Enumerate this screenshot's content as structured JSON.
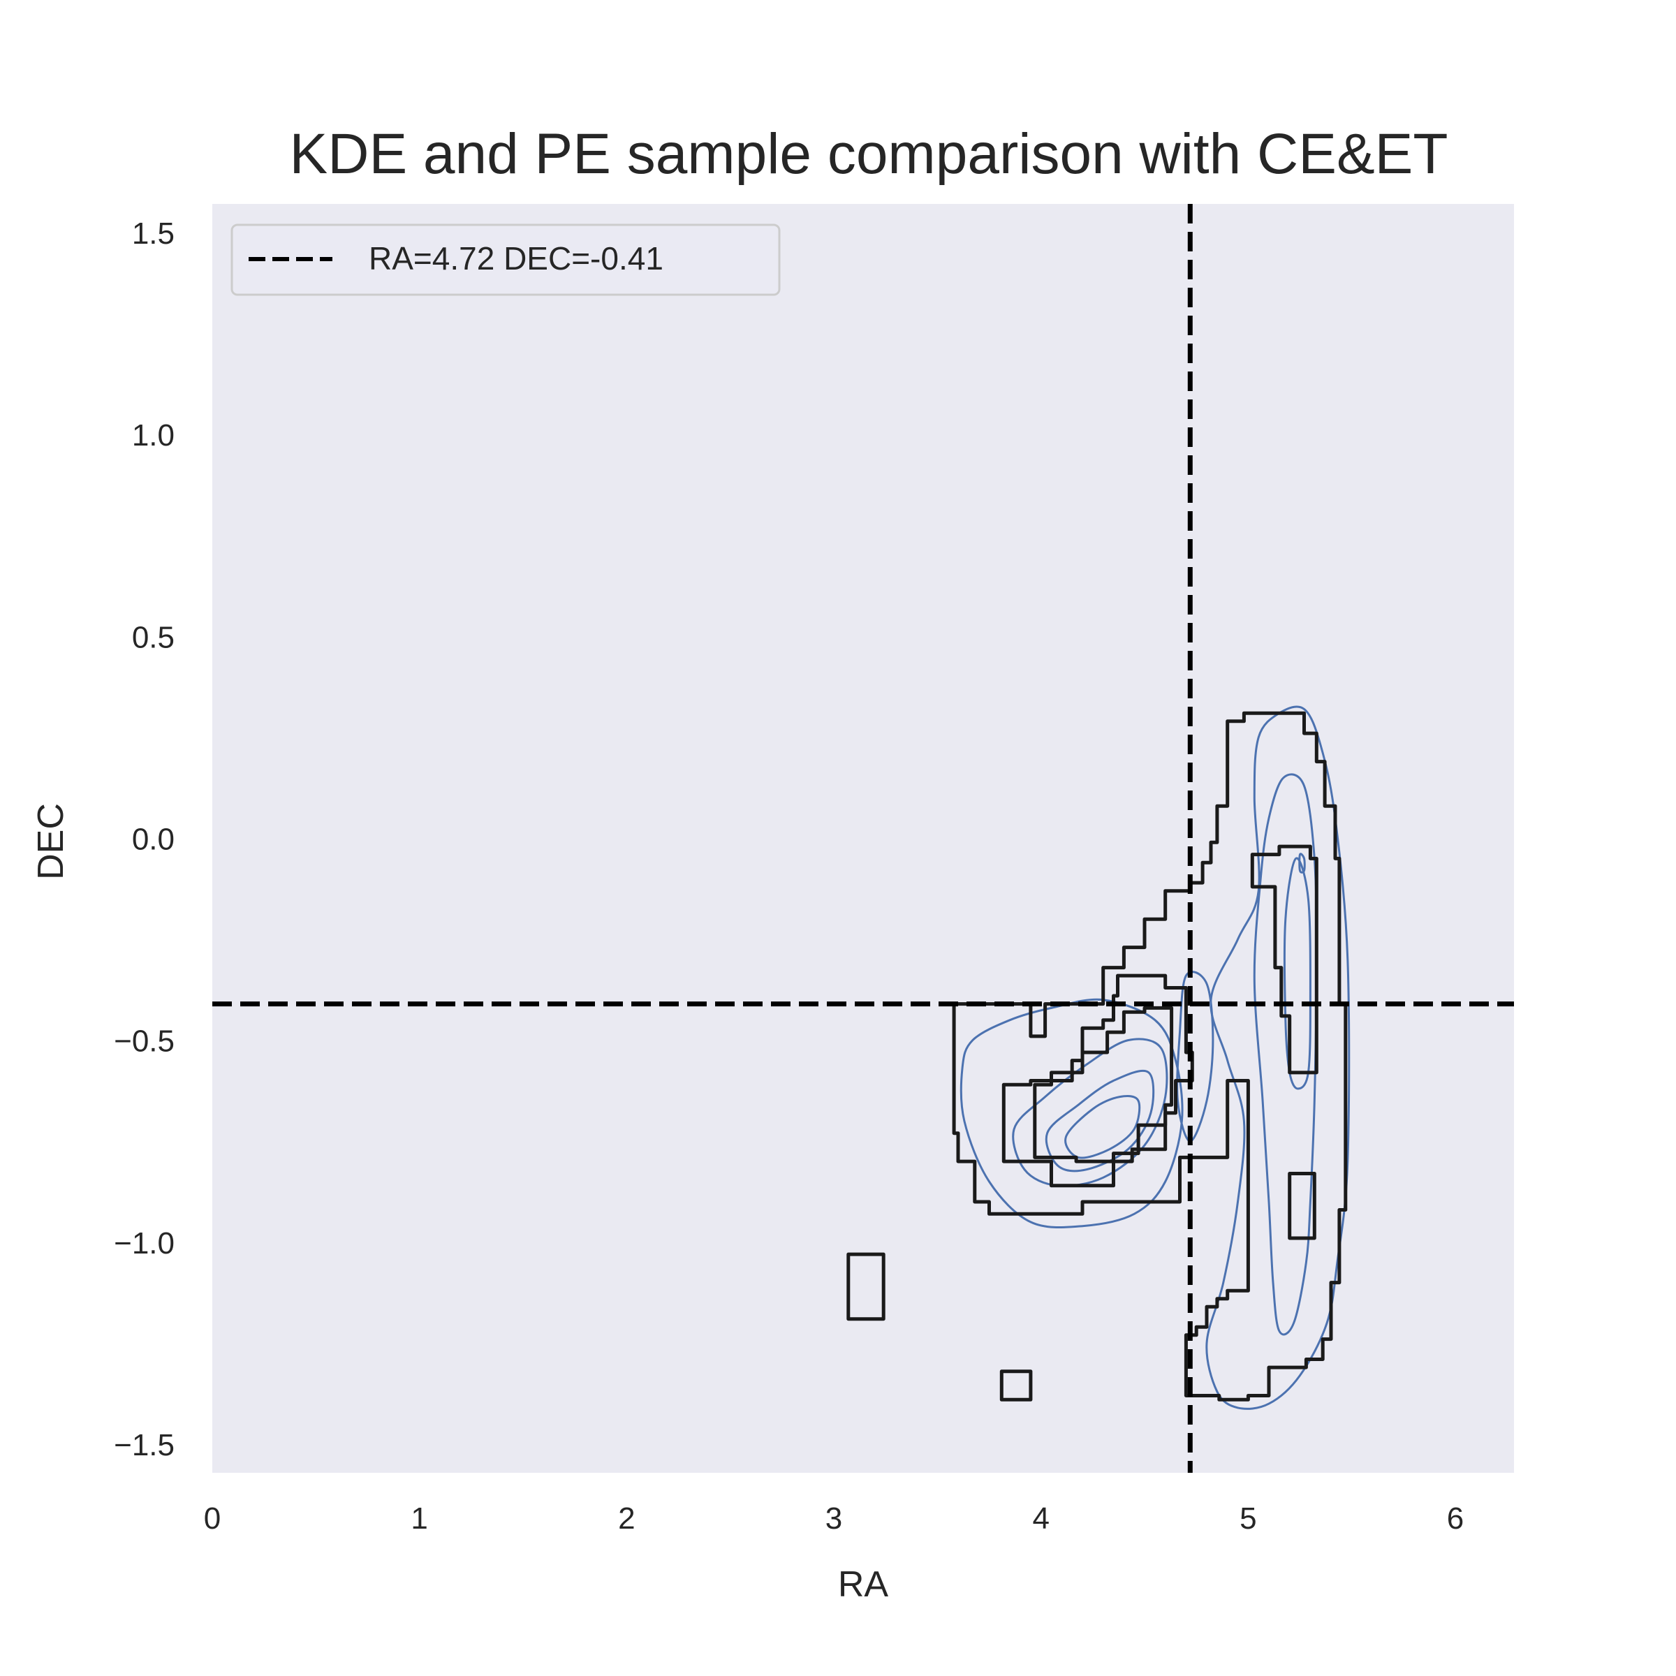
{
  "chart_data": {
    "type": "contour",
    "title": "KDE and PE sample comparison with CE&ET",
    "xlabel": "RA",
    "ylabel": "DEC",
    "xlim": [
      0,
      6.283
    ],
    "ylim": [
      -1.571,
      1.571
    ],
    "xticks": [
      0,
      1,
      2,
      3,
      4,
      5,
      6
    ],
    "xtick_labels": [
      "0",
      "1",
      "2",
      "3",
      "4",
      "5",
      "6"
    ],
    "yticks": [
      -1.5,
      -1.0,
      -0.5,
      0.0,
      0.5,
      1.0,
      1.5
    ],
    "ytick_labels": [
      "−1.5",
      "−1.0",
      "−0.5",
      "0.0",
      "0.5",
      "1.0",
      "1.5"
    ],
    "grid": false,
    "legend": {
      "location": "upper-left",
      "entries": [
        "RA=4.72 DEC=-0.41"
      ]
    },
    "reference_lines": {
      "ra": 4.72,
      "dec": -0.41,
      "style": "dashed",
      "color": "#000000"
    },
    "kde_contours": {
      "name": "KDE",
      "color": "#4c72b0",
      "levels": [
        {
          "name": "kde-left-outer",
          "points": [
            [
              3.67,
              -0.5
            ],
            [
              3.85,
              -0.45
            ],
            [
              4.05,
              -0.42
            ],
            [
              4.3,
              -0.4
            ],
            [
              4.55,
              -0.45
            ],
            [
              4.65,
              -0.55
            ],
            [
              4.68,
              -0.7
            ],
            [
              4.6,
              -0.85
            ],
            [
              4.45,
              -0.93
            ],
            [
              4.2,
              -0.96
            ],
            [
              3.95,
              -0.95
            ],
            [
              3.75,
              -0.85
            ],
            [
              3.63,
              -0.7
            ],
            [
              3.62,
              -0.57
            ]
          ]
        },
        {
          "name": "kde-left-mid",
          "points": [
            [
              3.87,
              -0.72
            ],
            [
              4.02,
              -0.64
            ],
            [
              4.22,
              -0.56
            ],
            [
              4.42,
              -0.5
            ],
            [
              4.58,
              -0.52
            ],
            [
              4.6,
              -0.64
            ],
            [
              4.5,
              -0.76
            ],
            [
              4.3,
              -0.84
            ],
            [
              4.08,
              -0.86
            ],
            [
              3.92,
              -0.82
            ]
          ]
        },
        {
          "name": "kde-left-inner",
          "points": [
            [
              4.03,
              -0.73
            ],
            [
              4.18,
              -0.66
            ],
            [
              4.35,
              -0.6
            ],
            [
              4.52,
              -0.58
            ],
            [
              4.53,
              -0.68
            ],
            [
              4.42,
              -0.77
            ],
            [
              4.22,
              -0.82
            ],
            [
              4.08,
              -0.81
            ]
          ]
        },
        {
          "name": "kde-center",
          "points": [
            [
              4.12,
              -0.74
            ],
            [
              4.25,
              -0.67
            ],
            [
              4.38,
              -0.64
            ],
            [
              4.47,
              -0.65
            ],
            [
              4.45,
              -0.72
            ],
            [
              4.33,
              -0.77
            ],
            [
              4.18,
              -0.79
            ]
          ]
        },
        {
          "name": "kde-right-outer",
          "points": [
            [
              4.82,
              -0.4
            ],
            [
              4.95,
              -0.25
            ],
            [
              5.05,
              -0.13
            ],
            [
              5.03,
              0.1
            ],
            [
              5.05,
              0.25
            ],
            [
              5.15,
              0.31
            ],
            [
              5.27,
              0.32
            ],
            [
              5.35,
              0.23
            ],
            [
              5.42,
              0.05
            ],
            [
              5.48,
              -0.3
            ],
            [
              5.48,
              -0.8
            ],
            [
              5.43,
              -1.05
            ],
            [
              5.38,
              -1.2
            ],
            [
              5.25,
              -1.33
            ],
            [
              5.1,
              -1.4
            ],
            [
              4.95,
              -1.41
            ],
            [
              4.85,
              -1.37
            ],
            [
              4.8,
              -1.25
            ],
            [
              4.88,
              -1.1
            ],
            [
              4.95,
              -0.9
            ],
            [
              4.98,
              -0.7
            ],
            [
              4.9,
              -0.55
            ]
          ]
        },
        {
          "name": "kde-right-mid",
          "points": [
            [
              5.07,
              -0.65
            ],
            [
              5.03,
              -0.35
            ],
            [
              5.06,
              -0.1
            ],
            [
              5.1,
              0.05
            ],
            [
              5.17,
              0.15
            ],
            [
              5.27,
              0.13
            ],
            [
              5.32,
              -0.05
            ],
            [
              5.33,
              -0.3
            ],
            [
              5.32,
              -0.65
            ],
            [
              5.3,
              -0.9
            ],
            [
              5.28,
              -1.05
            ],
            [
              5.22,
              -1.2
            ],
            [
              5.15,
              -1.22
            ],
            [
              5.12,
              -1.1
            ],
            [
              5.1,
              -0.9
            ]
          ]
        },
        {
          "name": "kde-right-inner",
          "points": [
            [
              5.18,
              -0.45
            ],
            [
              5.18,
              -0.2
            ],
            [
              5.23,
              -0.05
            ],
            [
              5.29,
              -0.15
            ],
            [
              5.3,
              -0.4
            ],
            [
              5.29,
              -0.58
            ],
            [
              5.24,
              -0.62
            ],
            [
              5.2,
              -0.58
            ]
          ]
        },
        {
          "name": "kde-right-core",
          "points": [
            [
              5.25,
              -0.04
            ],
            [
              5.27,
              -0.05
            ],
            [
              5.27,
              -0.08
            ],
            [
              5.25,
              -0.08
            ]
          ]
        },
        {
          "name": "kde-mid-bridge",
          "points": [
            [
              4.7,
              -0.34
            ],
            [
              4.8,
              -0.36
            ],
            [
              4.83,
              -0.5
            ],
            [
              4.8,
              -0.65
            ],
            [
              4.72,
              -0.75
            ],
            [
              4.66,
              -0.65
            ],
            [
              4.67,
              -0.48
            ]
          ]
        }
      ]
    },
    "pe_contours": {
      "name": "PE samples",
      "color": "#1a1a1a",
      "levels": [
        {
          "name": "pe-outer",
          "points": [
            [
              3.58,
              -0.41
            ],
            [
              3.95,
              -0.41
            ],
            [
              3.95,
              -0.49
            ],
            [
              4.02,
              -0.49
            ],
            [
              4.02,
              -0.41
            ],
            [
              4.3,
              -0.41
            ],
            [
              4.3,
              -0.32
            ],
            [
              4.4,
              -0.32
            ],
            [
              4.4,
              -0.27
            ],
            [
              4.5,
              -0.27
            ],
            [
              4.5,
              -0.2
            ],
            [
              4.6,
              -0.2
            ],
            [
              4.6,
              -0.13
            ],
            [
              4.72,
              -0.13
            ],
            [
              4.72,
              -0.11
            ],
            [
              4.78,
              -0.11
            ],
            [
              4.78,
              -0.06
            ],
            [
              4.82,
              -0.06
            ],
            [
              4.82,
              -0.01
            ],
            [
              4.85,
              -0.01
            ],
            [
              4.85,
              0.08
            ],
            [
              4.9,
              0.08
            ],
            [
              4.9,
              0.29
            ],
            [
              4.98,
              0.29
            ],
            [
              4.98,
              0.31
            ],
            [
              5.27,
              0.31
            ],
            [
              5.27,
              0.26
            ],
            [
              5.33,
              0.26
            ],
            [
              5.33,
              0.19
            ],
            [
              5.37,
              0.19
            ],
            [
              5.37,
              0.08
            ],
            [
              5.42,
              0.08
            ],
            [
              5.42,
              -0.05
            ],
            [
              5.44,
              -0.05
            ],
            [
              5.44,
              -0.41
            ],
            [
              5.47,
              -0.41
            ],
            [
              5.47,
              -0.92
            ],
            [
              5.44,
              -0.92
            ],
            [
              5.44,
              -1.1
            ],
            [
              5.4,
              -1.1
            ],
            [
              5.4,
              -1.24
            ],
            [
              5.36,
              -1.24
            ],
            [
              5.36,
              -1.29
            ],
            [
              5.28,
              -1.29
            ],
            [
              5.28,
              -1.31
            ],
            [
              5.1,
              -1.31
            ],
            [
              5.1,
              -1.38
            ],
            [
              5.0,
              -1.38
            ],
            [
              5.0,
              -1.39
            ],
            [
              4.86,
              -1.39
            ],
            [
              4.86,
              -1.38
            ],
            [
              4.7,
              -1.38
            ],
            [
              4.7,
              -1.23
            ],
            [
              4.75,
              -1.23
            ],
            [
              4.75,
              -1.21
            ],
            [
              4.8,
              -1.21
            ],
            [
              4.8,
              -1.16
            ],
            [
              4.85,
              -1.16
            ],
            [
              4.85,
              -1.14
            ],
            [
              4.9,
              -1.14
            ],
            [
              4.9,
              -1.12
            ],
            [
              5.0,
              -1.12
            ],
            [
              5.0,
              -0.6
            ],
            [
              4.9,
              -0.6
            ],
            [
              4.9,
              -0.79
            ],
            [
              4.67,
              -0.79
            ],
            [
              4.67,
              -0.9
            ],
            [
              4.2,
              -0.9
            ],
            [
              4.2,
              -0.93
            ],
            [
              3.75,
              -0.93
            ],
            [
              3.75,
              -0.9
            ],
            [
              3.68,
              -0.9
            ],
            [
              3.68,
              -0.8
            ],
            [
              3.6,
              -0.8
            ],
            [
              3.6,
              -0.73
            ],
            [
              3.58,
              -0.73
            ]
          ]
        },
        {
          "name": "pe-mid-left",
          "points": [
            [
              3.82,
              -0.61
            ],
            [
              3.95,
              -0.61
            ],
            [
              3.95,
              -0.6
            ],
            [
              4.15,
              -0.6
            ],
            [
              4.15,
              -0.55
            ],
            [
              4.2,
              -0.55
            ],
            [
              4.2,
              -0.47
            ],
            [
              4.3,
              -0.47
            ],
            [
              4.3,
              -0.45
            ],
            [
              4.35,
              -0.45
            ],
            [
              4.35,
              -0.39
            ],
            [
              4.37,
              -0.39
            ],
            [
              4.37,
              -0.34
            ],
            [
              4.6,
              -0.34
            ],
            [
              4.6,
              -0.37
            ],
            [
              4.7,
              -0.37
            ],
            [
              4.7,
              -0.53
            ],
            [
              4.73,
              -0.53
            ],
            [
              4.73,
              -0.6
            ],
            [
              4.65,
              -0.6
            ],
            [
              4.65,
              -0.68
            ],
            [
              4.6,
              -0.68
            ],
            [
              4.6,
              -0.71
            ],
            [
              4.47,
              -0.71
            ],
            [
              4.47,
              -0.78
            ],
            [
              4.35,
              -0.78
            ],
            [
              4.35,
              -0.86
            ],
            [
              4.05,
              -0.86
            ],
            [
              4.05,
              -0.8
            ],
            [
              3.82,
              -0.8
            ]
          ]
        },
        {
          "name": "pe-inner-left",
          "points": [
            [
              3.97,
              -0.61
            ],
            [
              4.05,
              -0.61
            ],
            [
              4.05,
              -0.58
            ],
            [
              4.2,
              -0.58
            ],
            [
              4.2,
              -0.53
            ],
            [
              4.32,
              -0.53
            ],
            [
              4.32,
              -0.48
            ],
            [
              4.4,
              -0.48
            ],
            [
              4.4,
              -0.43
            ],
            [
              4.5,
              -0.43
            ],
            [
              4.5,
              -0.42
            ],
            [
              4.63,
              -0.42
            ],
            [
              4.63,
              -0.66
            ],
            [
              4.6,
              -0.66
            ],
            [
              4.6,
              -0.77
            ],
            [
              4.44,
              -0.77
            ],
            [
              4.44,
              -0.8
            ],
            [
              4.17,
              -0.8
            ],
            [
              4.17,
              -0.79
            ],
            [
              3.97,
              -0.79
            ]
          ]
        },
        {
          "name": "pe-right-mid",
          "points": [
            [
              5.02,
              -0.04
            ],
            [
              5.15,
              -0.04
            ],
            [
              5.15,
              -0.02
            ],
            [
              5.3,
              -0.02
            ],
            [
              5.3,
              -0.05
            ],
            [
              5.33,
              -0.05
            ],
            [
              5.33,
              -0.58
            ],
            [
              5.2,
              -0.58
            ],
            [
              5.2,
              -0.44
            ],
            [
              5.16,
              -0.44
            ],
            [
              5.16,
              -0.32
            ],
            [
              5.13,
              -0.32
            ],
            [
              5.13,
              -0.12
            ],
            [
              5.02,
              -0.12
            ]
          ]
        },
        {
          "name": "pe-right-lower",
          "points": [
            [
              5.2,
              -0.83
            ],
            [
              5.32,
              -0.83
            ],
            [
              5.32,
              -0.99
            ],
            [
              5.2,
              -0.99
            ]
          ]
        },
        {
          "name": "pe-island-1",
          "points": [
            [
              3.07,
              -1.03
            ],
            [
              3.24,
              -1.03
            ],
            [
              3.24,
              -1.19
            ],
            [
              3.07,
              -1.19
            ]
          ]
        },
        {
          "name": "pe-island-2",
          "points": [
            [
              3.81,
              -1.32
            ],
            [
              3.95,
              -1.32
            ],
            [
              3.95,
              -1.39
            ],
            [
              3.81,
              -1.39
            ]
          ]
        }
      ]
    }
  }
}
